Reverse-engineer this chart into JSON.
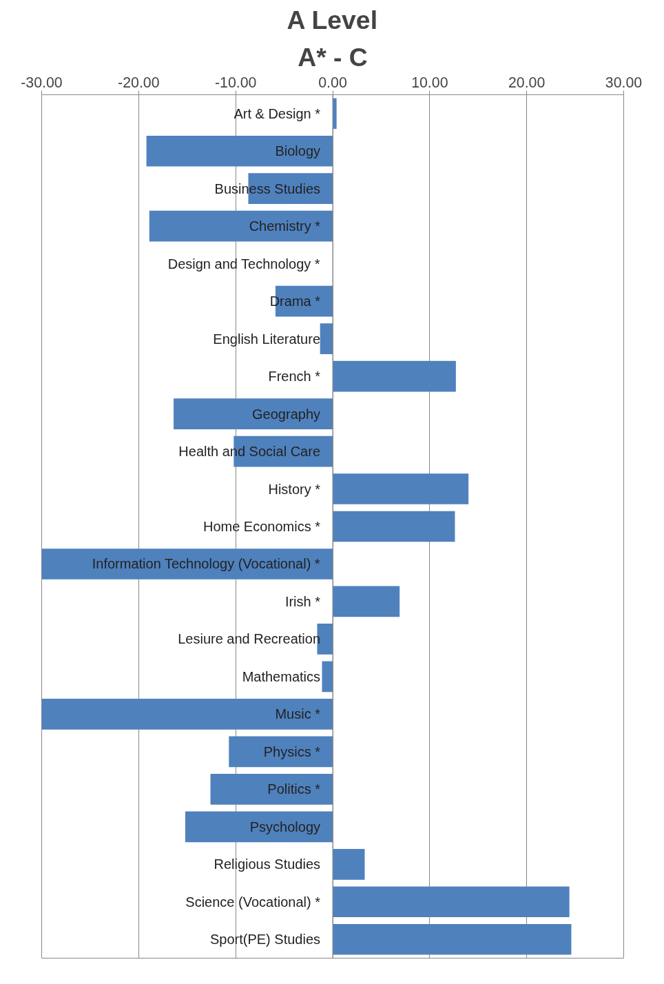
{
  "chart_data": {
    "type": "bar",
    "orientation": "horizontal",
    "title": "A Level",
    "subtitle": "A* - C",
    "categories": [
      "Art & Design *",
      "Biology",
      "Business Studies",
      "Chemistry *",
      "Design and Technology *",
      "Drama *",
      "English Literature",
      "French *",
      "Geography",
      "Health and Social Care",
      "History *",
      "Home Economics *",
      "Information Technology (Vocational) *",
      "Irish *",
      "Lesiure and Recreation",
      "Mathematics",
      "Music *",
      "Physics *",
      "Politics *",
      "Psychology",
      "Religious Studies",
      "Science (Vocational) *",
      "Sport(PE) Studies"
    ],
    "values": [
      0.4,
      -19.2,
      -8.7,
      -18.9,
      0,
      -5.9,
      -1.3,
      12.7,
      -16.4,
      -10.2,
      14.0,
      12.6,
      -30.0,
      6.9,
      -1.6,
      -1.1,
      -30.0,
      -10.7,
      -12.6,
      -15.2,
      3.3,
      24.4,
      24.6
    ],
    "color": "#4f81bd",
    "xlim": [
      -30,
      30
    ],
    "xticks": [
      {
        "value": -30,
        "label": "-30.00"
      },
      {
        "value": -20,
        "label": "-20.00"
      },
      {
        "value": -10,
        "label": "-10.00"
      },
      {
        "value": 0,
        "label": "0.00"
      },
      {
        "value": 10,
        "label": "10.00"
      },
      {
        "value": 20,
        "label": "20.00"
      },
      {
        "value": 30,
        "label": "30.00"
      }
    ],
    "grid": "x"
  }
}
